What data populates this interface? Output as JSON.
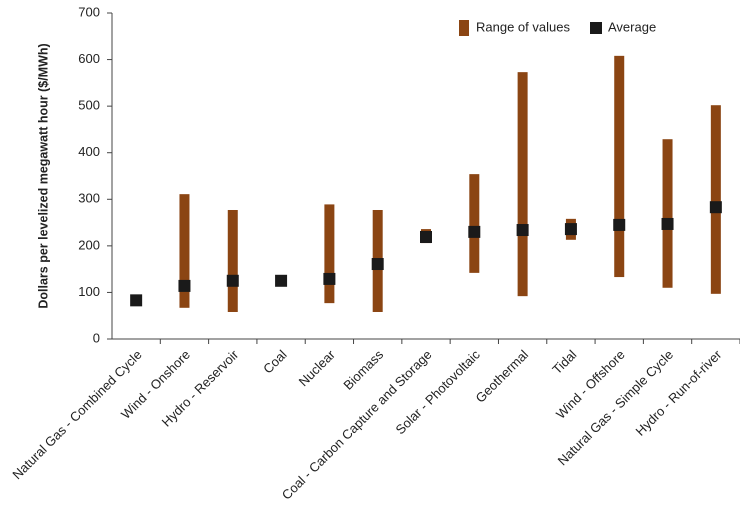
{
  "chart_data": {
    "type": "range_bar",
    "y_label": "Dollars per levelized megawatt hour  ($/MWh)",
    "categories": [
      "Natural Gas - Combined Cycle",
      "Wind - Onshore",
      "Hydro - Reservoir",
      "Coal",
      "Nuclear",
      "Biomass",
      "Coal - Carbon Capture and Storage",
      "Solar - Photovoltaic",
      "Geothermal",
      "Tidal",
      "Wind - Offshore",
      "Natural Gas - Simple Cycle",
      "Hydro - Run-of-river"
    ],
    "series": [
      {
        "name": "Range of values",
        "color": "#8b4513",
        "low": [
          80,
          67,
          58,
          115,
          77,
          58,
          206,
          142,
          92,
          213,
          133,
          110,
          97
        ],
        "high": [
          86,
          311,
          277,
          137,
          289,
          277,
          236,
          354,
          573,
          258,
          608,
          429,
          502
        ]
      },
      {
        "name": "Average",
        "color": "#1a1a1a",
        "values": [
          83,
          114,
          125,
          125,
          129,
          161,
          219,
          230,
          234,
          236,
          245,
          247,
          283
        ]
      }
    ],
    "ylim": [
      0,
      700
    ],
    "yticks": [
      0,
      100,
      200,
      300,
      400,
      500,
      600,
      700
    ],
    "grid": false
  }
}
